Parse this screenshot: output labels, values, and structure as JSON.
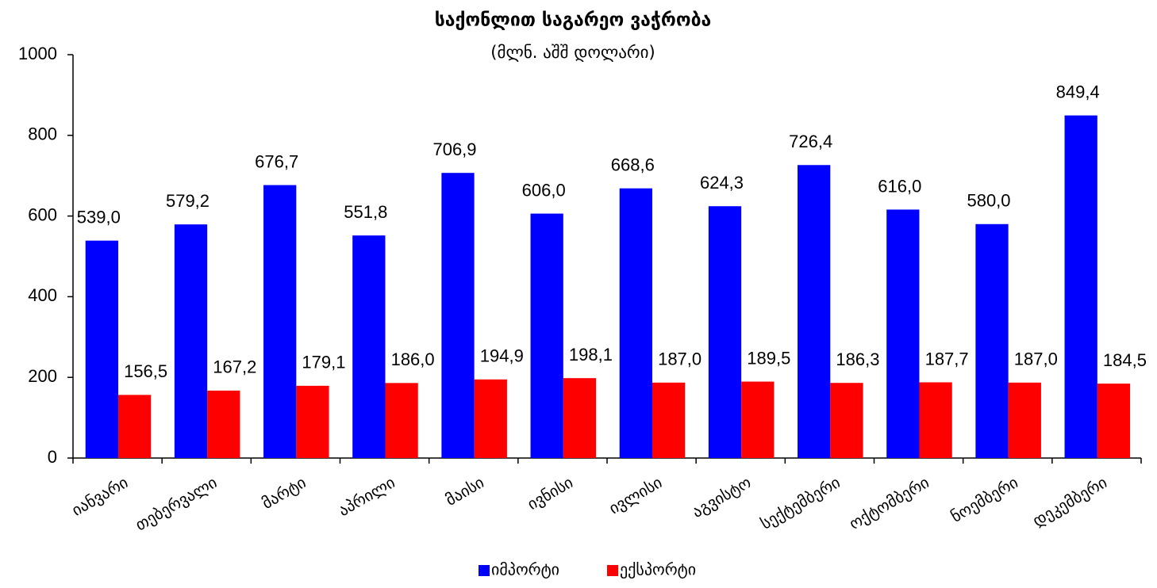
{
  "chart_data": {
    "type": "bar",
    "title": "საქონლით საგარეო ვაჭრობა",
    "subtitle": "(მლნ. აშშ დოლარი)",
    "categories": [
      "იანვარი",
      "თებერვალი",
      "მარტი",
      "აპრილი",
      "მაისი",
      "ივნისი",
      "ივლისი",
      "აგვისტო",
      "სექტემბერი",
      "ოქტომბერი",
      "ნოემბერი",
      "დეკემბერი"
    ],
    "series": [
      {
        "name": "იმპორტი",
        "color": "#0000ff",
        "values": [
          539.0,
          579.2,
          676.7,
          551.8,
          706.9,
          606.0,
          668.6,
          624.3,
          726.4,
          616.0,
          580.0,
          849.4
        ],
        "value_labels": [
          "539,0",
          "579,2",
          "676,7",
          "551,8",
          "706,9",
          "606,0",
          "668,6",
          "624,3",
          "726,4",
          "616,0",
          "580,0",
          "849,4"
        ]
      },
      {
        "name": "ექსპორტი",
        "color": "#ff0000",
        "values": [
          156.5,
          167.2,
          179.1,
          186.0,
          194.9,
          198.1,
          187.0,
          189.5,
          186.3,
          187.7,
          187.0,
          184.5
        ],
        "value_labels": [
          "156,5",
          "167,2",
          "179,1",
          "186,0",
          "194,9",
          "198,1",
          "187,0",
          "189,5",
          "186,3",
          "187,7",
          "187,0",
          "184,5"
        ]
      }
    ],
    "ylim": [
      0,
      1000
    ],
    "yticks": [
      0,
      200,
      400,
      600,
      800,
      1000
    ],
    "grid": false,
    "legend": "bottom"
  }
}
